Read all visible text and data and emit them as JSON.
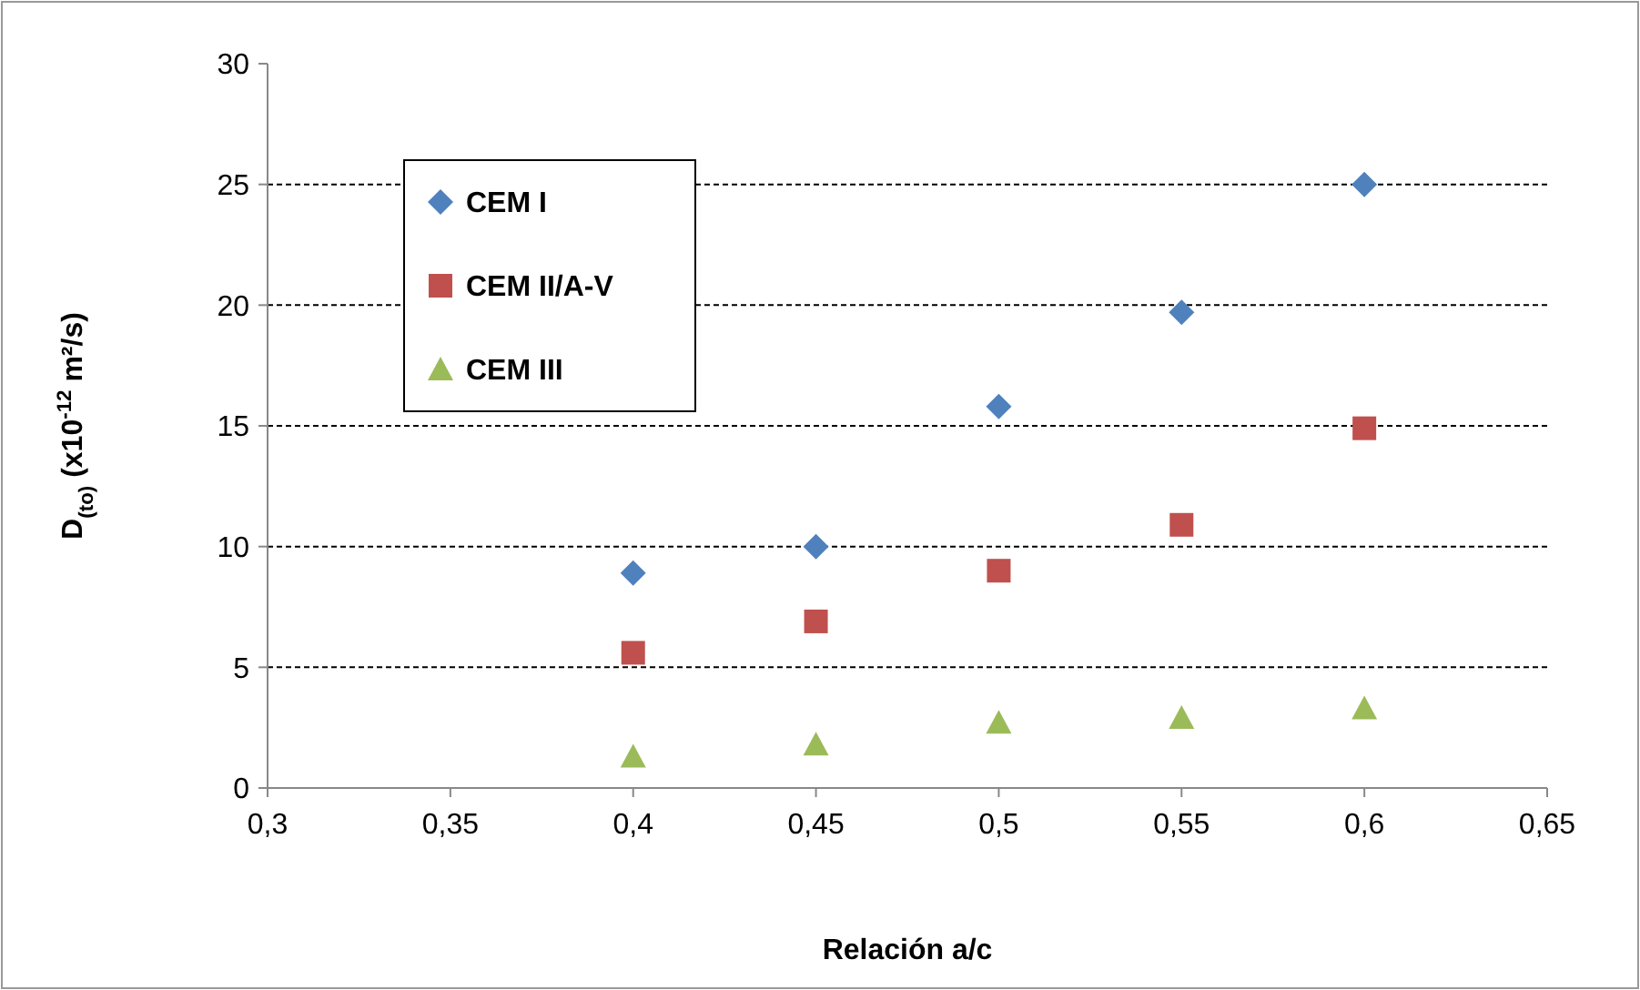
{
  "chart_data": {
    "type": "scatter",
    "xlabel": "Relación a/c",
    "ylabel": "D$_{(to)}$ (x10$^{-12}$ m²/s)",
    "x": [
      0.4,
      0.45,
      0.5,
      0.55,
      0.6
    ],
    "series": [
      {
        "name": "CEM I",
        "color": "#4f81bd",
        "marker": "diamond",
        "values": [
          8.9,
          10.0,
          15.8,
          19.7,
          25.0
        ]
      },
      {
        "name": "CEM II/A-V",
        "color": "#c0504d",
        "marker": "square",
        "values": [
          5.6,
          6.9,
          9.0,
          10.9,
          14.9
        ]
      },
      {
        "name": "CEM III",
        "color": "#9bbb59",
        "marker": "triangle",
        "values": [
          1.3,
          1.8,
          2.7,
          2.9,
          3.3
        ]
      }
    ],
    "xlim": [
      0.3,
      0.65
    ],
    "xticks": [
      {
        "value": 0.3,
        "label": "0,3"
      },
      {
        "value": 0.35,
        "label": "0,35"
      },
      {
        "value": 0.4,
        "label": "0,4"
      },
      {
        "value": 0.45,
        "label": "0,45"
      },
      {
        "value": 0.5,
        "label": "0,5"
      },
      {
        "value": 0.55,
        "label": "0,55"
      },
      {
        "value": 0.6,
        "label": "0,6"
      },
      {
        "value": 0.65,
        "label": "0,65"
      }
    ],
    "ylim": [
      0,
      30
    ],
    "yticks": [
      0,
      5,
      10,
      15,
      20,
      25,
      30
    ],
    "grid": "y",
    "legend": "top left"
  }
}
